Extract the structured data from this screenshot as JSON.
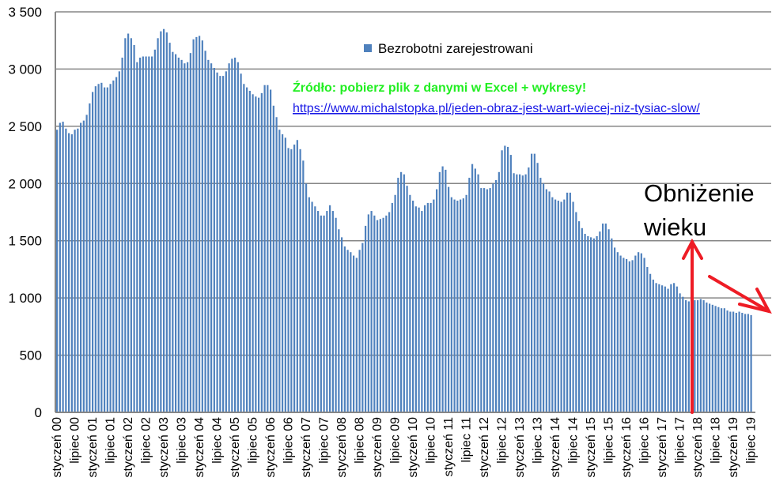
{
  "chart_data": {
    "type": "bar",
    "title": "",
    "xlabel": "",
    "ylabel": "",
    "ylim": [
      0,
      3500
    ],
    "y_ticks": [
      0,
      500,
      1000,
      1500,
      2000,
      2500,
      3000,
      3500
    ],
    "y_tick_labels": [
      "0",
      "500",
      "1 000",
      "1 500",
      "2 000",
      "2 500",
      "3 000",
      "3 500"
    ],
    "grid": true,
    "legend": {
      "position": "top-right",
      "entries": [
        "Bezrobotni zarejestrowani"
      ]
    },
    "x_start": "styczeń 00",
    "x_tick_step_months": 6,
    "x_tick_labels": [
      "styczeń 00",
      "lipiec 00",
      "styczeń 01",
      "lipiec 01",
      "styczeń 02",
      "lipiec 02",
      "styczeń 03",
      "lipiec 03",
      "styczeń 04",
      "lipiec 04",
      "styczeń 05",
      "lipiec 05",
      "styczeń 06",
      "lipiec 06",
      "styczeń 07",
      "lipiec 07",
      "styczeń 08",
      "lipiec 08",
      "styczeń 09",
      "lipiec 09",
      "styczeń 10",
      "lipiec 10",
      "styczeń 11",
      "lipiec 11",
      "styczeń 12",
      "lipiec 12",
      "styczeń 13",
      "lipiec 13",
      "styczeń 14",
      "lipiec 14",
      "styczeń 15",
      "lipiec 15",
      "styczeń 16",
      "lipiec 16",
      "styczeń 17",
      "lipiec 17",
      "styczeń 18",
      "lipiec 18",
      "styczeń 19",
      "lipiec 19"
    ],
    "series": [
      {
        "name": "Bezrobotni zarejestrowani",
        "color": "#4f81bd",
        "values": [
          2470,
          2530,
          2540,
          2480,
          2440,
          2430,
          2470,
          2480,
          2530,
          2550,
          2600,
          2700,
          2800,
          2850,
          2870,
          2880,
          2840,
          2840,
          2870,
          2900,
          2930,
          2980,
          3100,
          3270,
          3310,
          3270,
          3210,
          3060,
          3100,
          3110,
          3110,
          3110,
          3110,
          3170,
          3270,
          3330,
          3350,
          3320,
          3230,
          3150,
          3130,
          3100,
          3080,
          3050,
          3060,
          3140,
          3260,
          3280,
          3290,
          3250,
          3160,
          3080,
          3050,
          3010,
          2970,
          2940,
          2940,
          2980,
          3050,
          3090,
          3100,
          3060,
          2960,
          2870,
          2840,
          2810,
          2780,
          2760,
          2750,
          2790,
          2860,
          2860,
          2820,
          2680,
          2580,
          2470,
          2430,
          2400,
          2310,
          2300,
          2340,
          2380,
          2300,
          2200,
          2000,
          1880,
          1840,
          1800,
          1760,
          1720,
          1720,
          1760,
          1810,
          1760,
          1700,
          1600,
          1530,
          1450,
          1420,
          1400,
          1370,
          1350,
          1420,
          1480,
          1630,
          1730,
          1760,
          1720,
          1680,
          1690,
          1700,
          1720,
          1750,
          1830,
          1900,
          2050,
          2100,
          2080,
          1980,
          1900,
          1850,
          1800,
          1790,
          1760,
          1810,
          1830,
          1830,
          1860,
          1950,
          2100,
          2150,
          2120,
          1970,
          1880,
          1860,
          1850,
          1860,
          1870,
          1900,
          2050,
          2170,
          2130,
          2080,
          1960,
          1960,
          1950,
          1960,
          2000,
          2030,
          2100,
          2290,
          2330,
          2320,
          2250,
          2090,
          2080,
          2080,
          2070,
          2080,
          2140,
          2260,
          2260,
          2180,
          2050,
          2000,
          1950,
          1930,
          1880,
          1860,
          1850,
          1840,
          1860,
          1920,
          1920,
          1840,
          1750,
          1670,
          1610,
          1560,
          1540,
          1530,
          1520,
          1540,
          1580,
          1650,
          1650,
          1600,
          1520,
          1440,
          1400,
          1370,
          1350,
          1340,
          1320,
          1330,
          1370,
          1400,
          1390,
          1350,
          1270,
          1210,
          1160,
          1130,
          1120,
          1110,
          1100,
          1080,
          1120,
          1130,
          1100,
          1040,
          1010,
          980,
          970,
          970,
          980,
          980,
          990,
          980,
          960,
          950,
          940,
          930,
          920,
          910,
          910,
          890,
          880,
          880,
          870,
          880,
          870,
          860,
          860,
          850
        ]
      }
    ],
    "annotations": {
      "source_label": "Źródło: pobierz plik z danymi w Excel + wykresy!",
      "source_link": "https://www.michalstopka.pl/jeden-obraz-jest-wart-wiecej-niz-tysiac-slow/",
      "note_line1": "Obniżenie",
      "note_line2": "wieku",
      "arrow_color": "#ee1c25"
    }
  }
}
